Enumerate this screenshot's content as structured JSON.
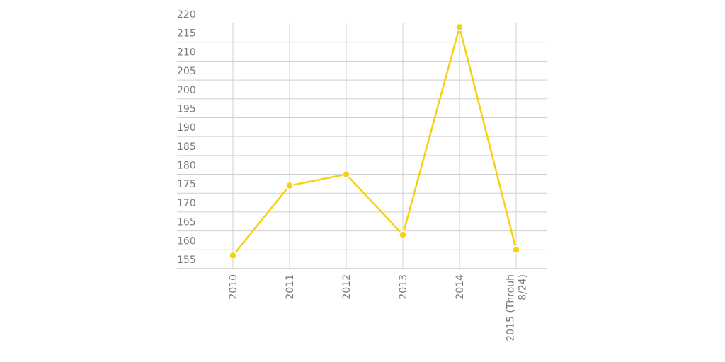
{
  "chart_data": {
    "type": "line",
    "title": "",
    "xlabel": "",
    "ylabel": "",
    "categories": [
      [
        "2010"
      ],
      [
        "2011"
      ],
      [
        "2012"
      ],
      [
        "2013"
      ],
      [
        "2014"
      ],
      [
        "2015 (Throuh",
        "8/24)"
      ]
    ],
    "series": [
      {
        "values": [
          158.5,
          177,
          180,
          164,
          219,
          160
        ],
        "color": "#f5d20c"
      }
    ],
    "ylim": [
      155,
      220
    ],
    "ytick_step": 5,
    "grid": true,
    "legend": "none"
  }
}
